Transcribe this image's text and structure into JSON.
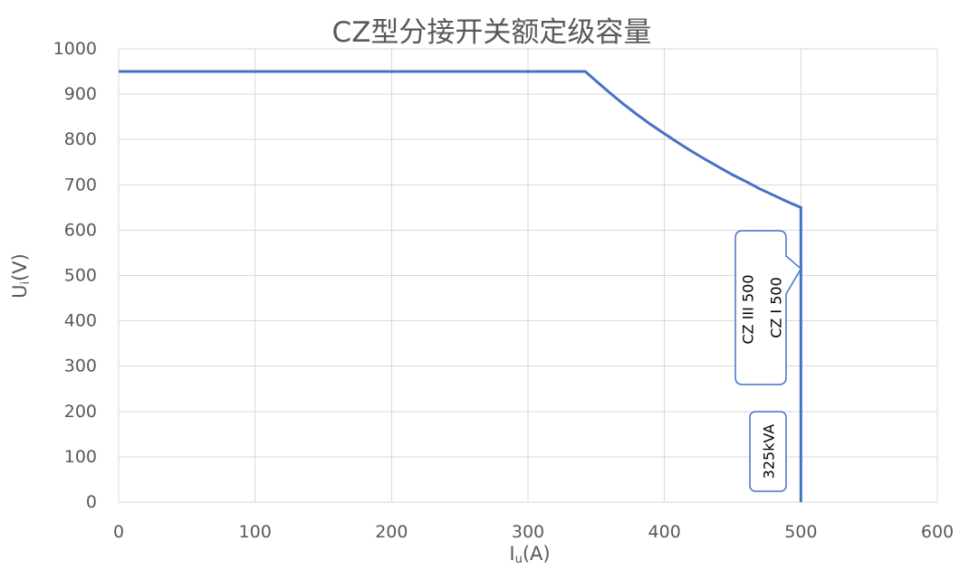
{
  "chart_data": {
    "type": "line",
    "title": "CZ型分接开关额定级容量",
    "xlabel": {
      "base": "I",
      "subscript": "u",
      "suffix": "(A)"
    },
    "ylabel": {
      "base": "U",
      "subscript": "i",
      "suffix": "(V)"
    },
    "xlim": [
      0,
      600
    ],
    "ylim": [
      0,
      1000
    ],
    "xticks": [
      0,
      100,
      200,
      300,
      400,
      500,
      600
    ],
    "yticks": [
      0,
      100,
      200,
      300,
      400,
      500,
      600,
      700,
      800,
      900,
      1000
    ],
    "grid": true,
    "colors": {
      "line": "#4472C4",
      "grid": "#D9D9D9",
      "text": "#595959",
      "callout_border": "#4472C4"
    },
    "series": [
      {
        "x": [
          0,
          342,
          350,
          360,
          370,
          380,
          390,
          400,
          410,
          420,
          430,
          440,
          450,
          460,
          470,
          480,
          490,
          500,
          500
        ],
        "y": [
          950,
          950,
          929,
          903,
          878,
          855,
          833,
          813,
          793,
          774,
          756,
          739,
          722,
          707,
          691,
          677,
          663,
          650,
          0
        ]
      }
    ],
    "annotations": [
      {
        "lines": [
          "CZ III 500",
          "CZ I 500"
        ]
      },
      {
        "lines": [
          "325kVA"
        ]
      }
    ]
  }
}
